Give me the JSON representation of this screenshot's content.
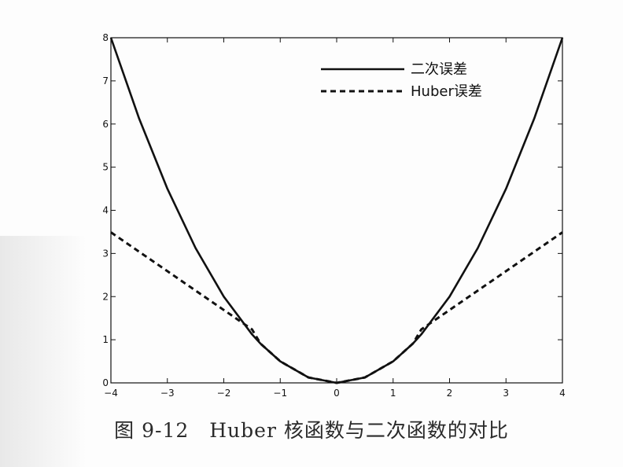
{
  "caption": "图 9-12　Huber 核函数与二次函数的对比",
  "colors": {
    "line": "#111111",
    "axis": "#111111",
    "background": "#ffffff"
  },
  "chart_data": {
    "type": "line",
    "title": "",
    "xlabel": "",
    "ylabel": "",
    "xlim": [
      -4,
      4
    ],
    "ylim": [
      0,
      8
    ],
    "xticks": [
      -4,
      -3,
      -2,
      -1,
      0,
      1,
      2,
      3,
      4
    ],
    "yticks": [
      0,
      1,
      2,
      3,
      4,
      5,
      6,
      7,
      8
    ],
    "xtick_labels": [
      "−4",
      "−3",
      "−2",
      "−1",
      "0",
      "1",
      "2",
      "3",
      "4"
    ],
    "ytick_labels": [
      "0",
      "1",
      "2",
      "3",
      "4",
      "5",
      "6",
      "7",
      "8"
    ],
    "grid": false,
    "legend_position": "top-right",
    "x": [
      -4,
      -3.5,
      -3,
      -2.5,
      -2,
      -1.5,
      -1.35,
      -1,
      -0.5,
      0,
      0.5,
      1,
      1.35,
      1.5,
      2,
      2.5,
      3,
      3.5,
      4
    ],
    "series": [
      {
        "name": "二次误差",
        "style": "solid",
        "values": [
          8,
          6.125,
          4.5,
          3.125,
          2,
          1.125,
          0.911,
          0.5,
          0.125,
          0,
          0.125,
          0.5,
          0.911,
          1.125,
          2,
          3.125,
          4.5,
          6.125,
          8
        ]
      },
      {
        "name": "Huber误差",
        "style": "dashed",
        "values": [
          3.49,
          3.04,
          2.59,
          2.14,
          1.69,
          1.24,
          0.911,
          0.5,
          0.125,
          0,
          0.125,
          0.5,
          0.911,
          1.24,
          1.69,
          2.14,
          2.59,
          3.04,
          3.49
        ]
      }
    ]
  }
}
